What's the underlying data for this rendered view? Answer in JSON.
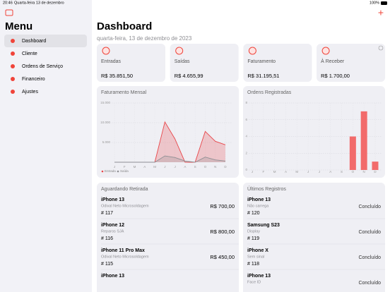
{
  "status_bar": {
    "time": "20:46",
    "date": "Quarta-feira 13 de dezembro",
    "battery": "100%"
  },
  "sidebar": {
    "title": "Menu",
    "items": [
      "Dashboard",
      "Cliente",
      "Ordens de Serviço",
      "Financeiro",
      "Ajustes"
    ]
  },
  "header": {
    "title": "Dashboard",
    "date": "quarta-feira, 13 de dezembro de 2023",
    "add": "+"
  },
  "stats": [
    {
      "label": "Entradas",
      "value": "R$ 35.851,50"
    },
    {
      "label": "Saídas",
      "value": "R$ 4.655,99"
    },
    {
      "label": "Faturamento",
      "value": "R$ 31.195,51"
    },
    {
      "label": "À Receber",
      "value": "R$ 1.700,00"
    }
  ],
  "charts": [
    {
      "type": "area",
      "title": "Faturamento Mensal",
      "categories": [
        "J",
        "F",
        "M",
        "A",
        "M",
        "J",
        "J",
        "A",
        "S",
        "O",
        "N",
        "D"
      ],
      "series": [
        {
          "name": "Entrada",
          "color": "#e8474b",
          "values": [
            0,
            0,
            0,
            0,
            0,
            10200,
            5900,
            0,
            0,
            7800,
            5300,
            4400
          ]
        },
        {
          "name": "Saída",
          "color": "#8e8e93",
          "values": [
            0,
            0,
            0,
            0,
            0,
            1600,
            1200,
            300,
            0,
            1300,
            600,
            300
          ]
        }
      ],
      "ylim": [
        0,
        15000
      ],
      "yticks": [
        {
          "value": 5000,
          "label": "5.000"
        },
        {
          "value": 10000,
          "label": "10.000"
        },
        {
          "value": 15000,
          "label": "15.000"
        }
      ],
      "grid": true
    },
    {
      "type": "bar",
      "title": "Ordens Registradas",
      "categories": [
        "J",
        "F",
        "M",
        "A",
        "M",
        "J",
        "J",
        "A",
        "S",
        "O",
        "N",
        "D"
      ],
      "values": [
        0,
        0,
        0,
        0,
        0,
        0,
        0,
        0,
        0,
        4,
        7,
        1
      ],
      "color": "#f26b6b",
      "ylim": [
        0,
        8
      ],
      "yticks": [
        0,
        2,
        4,
        6,
        8
      ],
      "grid": true
    }
  ],
  "waiting": {
    "title": "Aguardando Retirada",
    "items": [
      {
        "device": "iPhone 13",
        "client": "Odival Neto Microsoldagem",
        "number": "# 117",
        "price": "R$ 700,00"
      },
      {
        "device": "iPhone 12",
        "client": "Reparos SJA",
        "number": "# 116",
        "price": "R$ 800,00"
      },
      {
        "device": "iPhone 11 Pro Max",
        "client": "Odival Neto Microsoldagem",
        "number": "# 115",
        "price": "R$ 450,00"
      },
      {
        "device": "iPhone 13"
      }
    ]
  },
  "recent": {
    "title": "Últimos Registros",
    "items": [
      {
        "device": "iPhone 13",
        "issue": "Não carrega",
        "number": "# 120",
        "status": "Concluído"
      },
      {
        "device": "Samsung S23",
        "issue": "Display",
        "number": "# 119",
        "status": "Concluído"
      },
      {
        "device": "iPhone X",
        "issue": "Sem sinal",
        "number": "# 118",
        "status": "Concluído"
      },
      {
        "device": "iPhone 13",
        "issue": "Face ID",
        "status": "Concluído"
      }
    ]
  }
}
